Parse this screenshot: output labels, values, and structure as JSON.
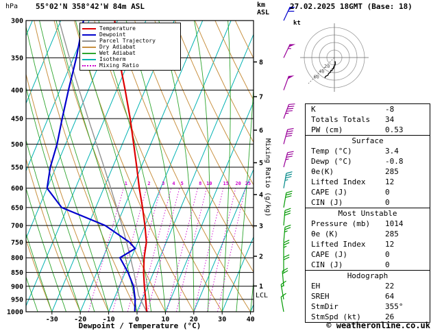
{
  "header": {
    "pressure_unit": "hPa",
    "station": "55°02'N 358°42'W 84m ASL",
    "datetime": "27.02.2025 18GMT (Base: 18)",
    "km_axis_label_1": "km",
    "km_axis_label_2": "ASL"
  },
  "legend": [
    {
      "label": "Temperature",
      "color": "#dd0000",
      "style": "solid"
    },
    {
      "label": "Dewpoint",
      "color": "#0000cc",
      "style": "solid"
    },
    {
      "label": "Parcel Trajectory",
      "color": "#909090",
      "style": "solid"
    },
    {
      "label": "Dry Adiabat",
      "color": "#c89040",
      "style": "solid"
    },
    {
      "label": "Wet Adiabat",
      "color": "#2da52d",
      "style": "solid"
    },
    {
      "label": "Isotherm",
      "color": "#00b2b2",
      "style": "solid"
    },
    {
      "label": "Mixing Ratio",
      "color": "#cc00cc",
      "style": "dotted"
    }
  ],
  "axes": {
    "pressure_ticks": [
      300,
      350,
      400,
      450,
      500,
      550,
      600,
      650,
      700,
      750,
      800,
      850,
      900,
      950,
      1000
    ],
    "temp_ticks": [
      -30,
      -20,
      -10,
      0,
      10,
      20,
      30,
      40
    ],
    "km_ticks": [
      {
        "km": 1,
        "p": 899
      },
      {
        "km": 2,
        "p": 795
      },
      {
        "km": 3,
        "p": 701
      },
      {
        "km": 4,
        "p": 616
      },
      {
        "km": 5,
        "p": 540
      },
      {
        "km": 6,
        "p": 472
      },
      {
        "km": 7,
        "p": 411
      },
      {
        "km": 8,
        "p": 356
      }
    ],
    "xlabel": "Dewpoint / Temperature (°C)",
    "mixing_label": "Mixing Ratio (g/kg)",
    "lcl_label": "LCL"
  },
  "chart_data": {
    "type": "line",
    "subtype": "skew-t log-p sounding",
    "title": "55°02'N 358°42'W 84m ASL  27.02.2025 18GMT (Base: 18)",
    "x_axis": {
      "label": "Dewpoint / Temperature (°C)",
      "range": [
        -40,
        41
      ],
      "ticks": [
        -30,
        -20,
        -10,
        0,
        10,
        20,
        30,
        40
      ]
    },
    "y_axis": {
      "label": "hPa",
      "scale": "log",
      "range": [
        1000,
        300
      ],
      "ticks": [
        300,
        350,
        400,
        450,
        500,
        550,
        600,
        650,
        700,
        750,
        800,
        850,
        900,
        950,
        1000
      ]
    },
    "colors": {
      "temperature": "#dd0000",
      "dewpoint": "#0000cc",
      "parcel": "#909090",
      "dry_adiabat": "#c89040",
      "wet_adiabat": "#2da52d",
      "isotherm": "#00b2b2",
      "mixing_ratio": "#cc00cc",
      "grid": "#000000"
    },
    "series": [
      {
        "name": "Temperature",
        "color": "#dd0000",
        "points": [
          [
            1000,
            3.4
          ],
          [
            950,
            1.2
          ],
          [
            900,
            -1.2
          ],
          [
            850,
            -3.5
          ],
          [
            800,
            -5.5
          ],
          [
            750,
            -7
          ],
          [
            700,
            -10
          ],
          [
            650,
            -13.5
          ],
          [
            600,
            -17.5
          ],
          [
            550,
            -21.5
          ],
          [
            500,
            -26
          ],
          [
            450,
            -31
          ],
          [
            400,
            -37
          ],
          [
            350,
            -44
          ],
          [
            300,
            -51
          ]
        ]
      },
      {
        "name": "Dewpoint",
        "color": "#0000cc",
        "points": [
          [
            1000,
            -0.8
          ],
          [
            950,
            -2.5
          ],
          [
            900,
            -5
          ],
          [
            850,
            -9
          ],
          [
            800,
            -14
          ],
          [
            770,
            -10
          ],
          [
            750,
            -13
          ],
          [
            700,
            -24
          ],
          [
            650,
            -42
          ],
          [
            600,
            -50
          ],
          [
            550,
            -52
          ],
          [
            500,
            -53
          ],
          [
            450,
            -55
          ],
          [
            400,
            -57
          ],
          [
            350,
            -59
          ],
          [
            300,
            -62
          ]
        ]
      }
    ],
    "parcel": {
      "surface_temp_c": 3.4,
      "surface_dewp_c": -0.8,
      "start_pressure": 1000
    },
    "mixing_ratio_lines": [
      1,
      2,
      3,
      4,
      5,
      8,
      10,
      15,
      20,
      25
    ],
    "isotherm_step_c": 10,
    "dry_adiabat_step_c": 10,
    "wet_adiabat_step_c": 5,
    "wind_barbs": [
      {
        "p": 300,
        "dir": 25,
        "spd": 60,
        "color": "#0000cc"
      },
      {
        "p": 350,
        "dir": 25,
        "spd": 55,
        "color": "#990099"
      },
      {
        "p": 400,
        "dir": 20,
        "spd": 50,
        "color": "#990099"
      },
      {
        "p": 450,
        "dir": 20,
        "spd": 45,
        "color": "#990099"
      },
      {
        "p": 500,
        "dir": 15,
        "spd": 40,
        "color": "#990099"
      },
      {
        "p": 550,
        "dir": 15,
        "spd": 35,
        "color": "#990099"
      },
      {
        "p": 600,
        "dir": 10,
        "spd": 35,
        "color": "#008888"
      },
      {
        "p": 650,
        "dir": 10,
        "spd": 30,
        "color": "#009900"
      },
      {
        "p": 700,
        "dir": 5,
        "spd": 30,
        "color": "#009900"
      },
      {
        "p": 750,
        "dir": 5,
        "spd": 25,
        "color": "#009900"
      },
      {
        "p": 800,
        "dir": 0,
        "spd": 25,
        "color": "#009900"
      },
      {
        "p": 850,
        "dir": 0,
        "spd": 20,
        "color": "#009900"
      },
      {
        "p": 900,
        "dir": 355,
        "spd": 20,
        "color": "#009900"
      },
      {
        "p": 950,
        "dir": 350,
        "spd": 15,
        "color": "#009900"
      },
      {
        "p": 1000,
        "dir": 350,
        "spd": 10,
        "color": "#009900"
      }
    ]
  },
  "hodograph": {
    "unit_label": "kt",
    "ring_step_kt": 20,
    "ring_labels": [
      "20",
      "40",
      "60"
    ]
  },
  "indices": {
    "rows1": [
      [
        "K",
        "-8"
      ],
      [
        "Totals Totals",
        "34"
      ],
      [
        "PW (cm)",
        "0.53"
      ]
    ],
    "surface_header": "Surface",
    "rows2": [
      [
        "Temp (°C)",
        "3.4"
      ],
      [
        "Dewp (°C)",
        "-0.8"
      ],
      [
        "θe(K)",
        "285"
      ],
      [
        "Lifted Index",
        "12"
      ],
      [
        "CAPE (J)",
        "0"
      ],
      [
        "CIN (J)",
        "0"
      ]
    ],
    "mu_header": "Most Unstable",
    "rows3": [
      [
        "Pressure (mb)",
        "1014"
      ],
      [
        "θe (K)",
        "285"
      ],
      [
        "Lifted Index",
        "12"
      ],
      [
        "CAPE (J)",
        "0"
      ],
      [
        "CIN (J)",
        "0"
      ]
    ],
    "hodo_header": "Hodograph",
    "rows4": [
      [
        "EH",
        "22"
      ],
      [
        "SREH",
        "64"
      ],
      [
        "StmDir",
        "355°"
      ],
      [
        "StmSpd (kt)",
        "26"
      ]
    ]
  },
  "footer": {
    "copyright": "© weatheronline.co.uk"
  }
}
